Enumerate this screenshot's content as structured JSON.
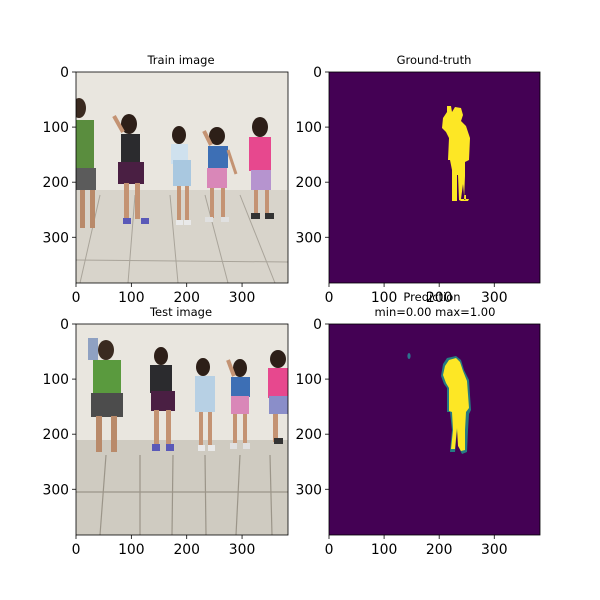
{
  "figure": {
    "panels": [
      {
        "id": "train",
        "kind": "photo",
        "title_lines": [
          "Train image"
        ],
        "ticks_x": [
          "0",
          "100",
          "200",
          "300"
        ],
        "ticks_y": [
          "0",
          "100",
          "200",
          "300"
        ],
        "description": "photo of children dancing in a white-walled room with a tiled floor"
      },
      {
        "id": "gt",
        "kind": "mask",
        "title_lines": [
          "Ground-truth"
        ],
        "ticks_x": [
          "0",
          "100",
          "200",
          "300"
        ],
        "ticks_y": [
          "0",
          "100",
          "200",
          "300"
        ]
      },
      {
        "id": "test",
        "kind": "photo",
        "title_lines": [
          "Test image"
        ],
        "ticks_x": [
          "0",
          "100",
          "200",
          "300"
        ],
        "ticks_y": [
          "0",
          "100",
          "200",
          "300"
        ]
      },
      {
        "id": "pred",
        "kind": "mask",
        "title_lines": [
          "Prediction",
          "min=0.00 max=1.00"
        ],
        "ticks_x": [
          "0",
          "100",
          "200",
          "300"
        ],
        "ticks_y": [
          "0",
          "100",
          "200",
          "300"
        ]
      }
    ],
    "colors": {
      "mask_background": "#440154",
      "mask_foreground": "#fde725",
      "mask_edge": "#21918c",
      "wall": "#e6e2da",
      "floor": "#d9d5cc"
    }
  },
  "chart_data": [
    {
      "type": "heatmap",
      "title": "Train image",
      "xlim": [
        0,
        383
      ],
      "ylim": [
        383,
        0
      ],
      "x_ticks": [
        0,
        100,
        200,
        300
      ],
      "y_ticks": [
        0,
        100,
        200,
        300
      ]
    },
    {
      "type": "heatmap",
      "title": "Ground-truth",
      "xlim": [
        0,
        383
      ],
      "ylim": [
        383,
        0
      ],
      "x_ticks": [
        0,
        100,
        200,
        300
      ],
      "y_ticks": [
        0,
        100,
        200,
        300
      ],
      "values_range": [
        0,
        1
      ]
    },
    {
      "type": "heatmap",
      "title": "Test image",
      "xlim": [
        0,
        383
      ],
      "ylim": [
        383,
        0
      ],
      "x_ticks": [
        0,
        100,
        200,
        300
      ],
      "y_ticks": [
        0,
        100,
        200,
        300
      ]
    },
    {
      "type": "heatmap",
      "title": "Prediction\nmin=0.00 max=1.00",
      "xlim": [
        0,
        383
      ],
      "ylim": [
        383,
        0
      ],
      "x_ticks": [
        0,
        100,
        200,
        300
      ],
      "y_ticks": [
        0,
        100,
        200,
        300
      ],
      "values_range": [
        0.0,
        1.0
      ]
    }
  ]
}
